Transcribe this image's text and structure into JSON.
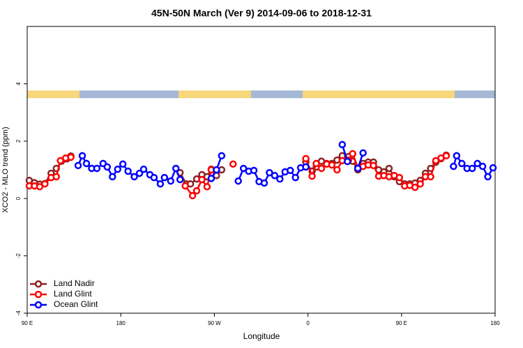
{
  "chart_data": {
    "type": "line",
    "title": "45N-50N March (Ver 9)   2014-09-06 to 2018-12-31",
    "x_label": "Longitude",
    "y_label": "XCO2 - MLO trend (ppm)",
    "xlim": [
      90,
      540
    ],
    "ylim": [
      -4,
      6
    ],
    "xticks": [
      {
        "value": 90,
        "label": "90 E"
      },
      180,
      {
        "value": 270,
        "label": "90 W"
      },
      {
        "value": 360,
        "label": "0"
      },
      {
        "value": 450,
        "label": "90 E"
      },
      {
        "value": 540,
        "label": "180"
      }
    ],
    "yticks": [
      -4,
      -2,
      0,
      2,
      4
    ],
    "legend": "bottomleft",
    "series": [
      {
        "name": "Land Nadir",
        "color": "#8b2323",
        "x": [
          92,
          97,
          102,
          107,
          113,
          118,
          123,
          128,
          132,
          null,
          237,
          243,
          247,
          253,
          258,
          263,
          267,
          272,
          277,
          null,
          358,
          364,
          368,
          373,
          378,
          383,
          388,
          393,
          399,
          403,
          408,
          413,
          418,
          423,
          428,
          433,
          438,
          443,
          448,
          453,
          458,
          463,
          468,
          473,
          478,
          483,
          488,
          493
        ],
        "values": [
          0.63,
          0.55,
          0.5,
          0.52,
          0.88,
          1.05,
          1.3,
          1.38,
          1.48,
          null,
          0.9,
          0.51,
          0.51,
          0.68,
          0.83,
          0.76,
          1.02,
          0.8,
          1.0,
          null,
          1.27,
          0.95,
          1.1,
          1.3,
          1.22,
          1.22,
          1.34,
          1.49,
          1.46,
          1.3,
          1.0,
          1.22,
          1.27,
          1.27,
          1.0,
          0.93,
          1.05,
          0.76,
          0.59,
          0.51,
          0.51,
          0.54,
          0.63,
          0.88,
          1.05,
          1.27,
          1.39,
          1.51
        ]
      },
      {
        "name": "Land Glint",
        "color": "#ff0000",
        "x": [
          92,
          97,
          102,
          107,
          113,
          118,
          122,
          127,
          132,
          null,
          242,
          249,
          253,
          258,
          263,
          267,
          null,
          288,
          null,
          358,
          364,
          368,
          373,
          378,
          383,
          388,
          393,
          399,
          403,
          408,
          413,
          418,
          423,
          428,
          433,
          438,
          443,
          448,
          453,
          458,
          463,
          468,
          473,
          478,
          483,
          488,
          493
        ],
        "values": [
          0.44,
          0.44,
          0.41,
          0.51,
          0.73,
          0.76,
          1.32,
          1.41,
          1.44,
          null,
          0.44,
          0.1,
          0.27,
          0.66,
          0.41,
          1.0,
          null,
          1.2,
          null,
          1.39,
          0.78,
          1.22,
          1.05,
          1.2,
          1.17,
          1.0,
          1.32,
          1.34,
          1.56,
          1.07,
          1.12,
          1.17,
          1.15,
          0.78,
          0.8,
          0.76,
          0.8,
          0.73,
          0.44,
          0.46,
          0.39,
          0.51,
          0.76,
          0.76,
          1.32,
          1.41,
          1.49
        ]
      },
      {
        "name": "Ocean Glint",
        "color": "#0000ff",
        "x": [
          139,
          143,
          147,
          152,
          157,
          163,
          167,
          172,
          177,
          182,
          187,
          193,
          198,
          202,
          208,
          212,
          218,
          222,
          228,
          233,
          237,
          null,
          267,
          272,
          277,
          null,
          293,
          298,
          303,
          308,
          313,
          318,
          323,
          328,
          333,
          338,
          343,
          348,
          353,
          358,
          null,
          393,
          398,
          null,
          408,
          413,
          null,
          500,
          503,
          508,
          513,
          518,
          523,
          528,
          533,
          538
        ],
        "values": [
          1.15,
          1.49,
          1.22,
          1.05,
          1.05,
          1.22,
          1.1,
          0.76,
          1.02,
          1.2,
          0.95,
          0.76,
          0.88,
          1.02,
          0.83,
          0.73,
          0.51,
          0.73,
          0.61,
          1.05,
          0.66,
          null,
          0.7,
          1.0,
          1.49,
          null,
          0.61,
          1.05,
          0.95,
          0.98,
          0.59,
          0.54,
          0.9,
          0.8,
          0.68,
          0.93,
          0.98,
          0.73,
          1.07,
          1.1,
          null,
          1.88,
          1.29,
          null,
          1.05,
          1.59,
          null,
          1.12,
          1.49,
          1.22,
          1.05,
          1.05,
          1.22,
          1.12,
          0.76,
          1.07
        ]
      }
    ]
  }
}
